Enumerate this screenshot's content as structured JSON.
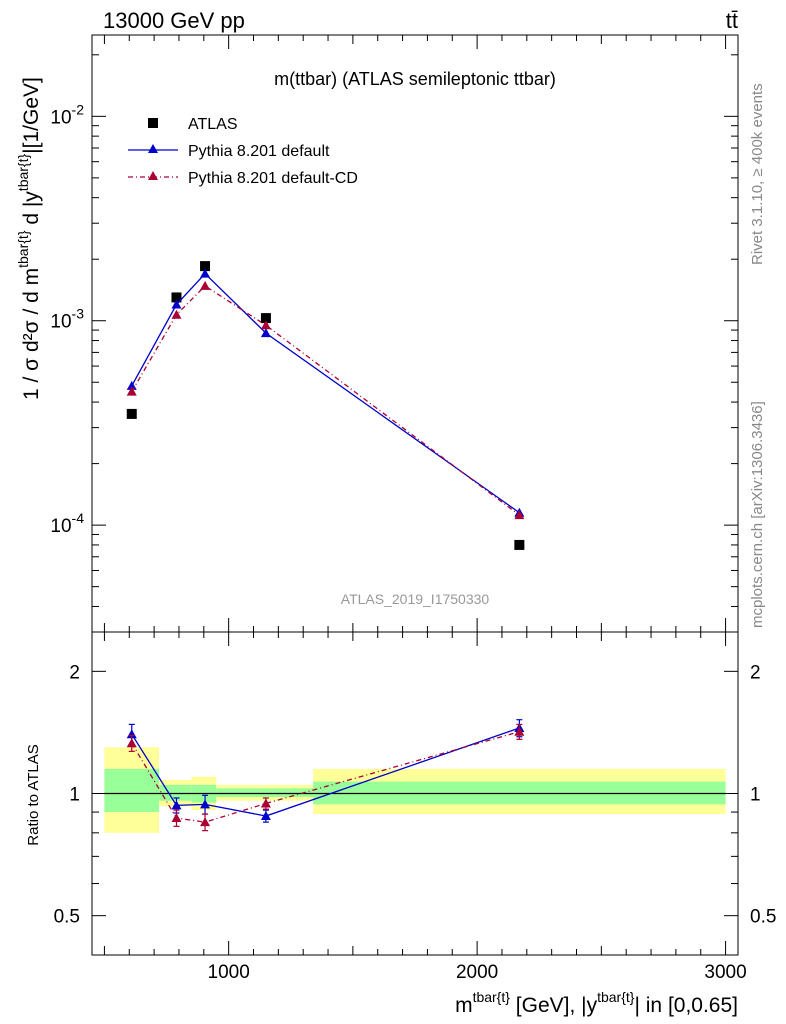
{
  "header": {
    "left_label": "13000 GeV pp",
    "right_label": "tt̄"
  },
  "side_labels": {
    "rivet": "Rivet 3.1.10, ≥ 400k events",
    "source": "mcplots.cern.ch [arXiv:1306.3436]"
  },
  "chart_data": [
    {
      "type": "scatter",
      "title": "m(ttbar) (ATLAS semileptonic ttbar)",
      "watermark": "ATLAS_2019_I1750330",
      "ylabel_main": "1 / σ d²σ / d m",
      "ylabel_sup1": "tbar{t}",
      "ylabel_mid": " d |y",
      "ylabel_sup2": "tbar{t}",
      "ylabel_end": "|[1/GeV]",
      "y_scale": "log",
      "xlim": [
        450,
        3050
      ],
      "ylim": [
        3e-05,
        0.025
      ],
      "y_ticks": [
        {
          "value": 0.0001,
          "base": "10",
          "exp": "-4"
        },
        {
          "value": 0.001,
          "base": "10",
          "exp": "-3"
        },
        {
          "value": 0.01,
          "base": "10",
          "exp": "-2"
        }
      ],
      "legend_position": "top-left",
      "series": [
        {
          "name": "ATLAS",
          "color": "#000000",
          "marker": "square",
          "x": [
            610,
            790,
            905,
            1150,
            2170
          ],
          "y": [
            0.00035,
            0.0013,
            0.00185,
            0.00103,
            8e-05
          ]
        },
        {
          "name": "Pythia 8.201 default",
          "color": "#0000cc",
          "marker": "triangle",
          "line": "solid",
          "x": [
            610,
            790,
            905,
            1150,
            2170
          ],
          "y": [
            0.00048,
            0.0012,
            0.0017,
            0.00087,
            0.000115
          ]
        },
        {
          "name": "Pythia 8.201 default-CD",
          "color": "#aa0033",
          "marker": "triangle",
          "line": "dashdot",
          "x": [
            610,
            790,
            905,
            1150,
            2170
          ],
          "y": [
            0.00045,
            0.00107,
            0.00148,
            0.00095,
            0.000112
          ]
        }
      ]
    },
    {
      "type": "scatter",
      "ylabel": "Ratio to ATLAS",
      "xlabel_main": "m",
      "xlabel_sup1": "tbar{t}",
      "xlabel_mid": " [GeV], |y",
      "xlabel_sup2": "tbar{t}",
      "xlabel_end": "| in [0,0.65]",
      "y_scale": "log",
      "xlim": [
        450,
        3050
      ],
      "ylim": [
        0.4,
        2.5
      ],
      "x_ticks": [
        1000,
        2000,
        3000
      ],
      "x_tick_labels": [
        "1000",
        "2000",
        "3000"
      ],
      "y_ticks": [
        0.5,
        1,
        2
      ],
      "y_tick_labels": [
        "0.5",
        "1",
        "2"
      ],
      "reference_line": 1,
      "uncertainty_bands": [
        {
          "x0": 500,
          "x1": 720,
          "yellow": [
            0.8,
            1.3
          ],
          "green": [
            0.9,
            1.15
          ]
        },
        {
          "x0": 720,
          "x1": 850,
          "yellow": [
            0.93,
            1.08
          ],
          "green": [
            0.96,
            1.05
          ]
        },
        {
          "x0": 850,
          "x1": 950,
          "yellow": [
            0.91,
            1.1
          ],
          "green": [
            0.95,
            1.05
          ]
        },
        {
          "x0": 950,
          "x1": 1340,
          "yellow": [
            0.96,
            1.05
          ],
          "green": [
            0.98,
            1.03
          ]
        },
        {
          "x0": 1340,
          "x1": 3000,
          "yellow": [
            0.89,
            1.15
          ],
          "green": [
            0.94,
            1.07
          ]
        }
      ],
      "series": [
        {
          "name": "Pythia 8.201 default",
          "color": "#0000cc",
          "marker": "triangle",
          "line": "solid",
          "x": [
            610,
            790,
            905,
            1150,
            2170
          ],
          "y": [
            1.4,
            0.935,
            0.94,
            0.88,
            1.45
          ],
          "err": [
            0.08,
            0.04,
            0.05,
            0.03,
            0.07
          ]
        },
        {
          "name": "Pythia 8.201 default-CD",
          "color": "#aa0033",
          "marker": "triangle",
          "line": "dashdot",
          "x": [
            610,
            790,
            905,
            1150,
            2170
          ],
          "y": [
            1.33,
            0.87,
            0.85,
            0.945,
            1.42
          ],
          "err": [
            0.06,
            0.04,
            0.04,
            0.03,
            0.06
          ]
        }
      ]
    }
  ]
}
